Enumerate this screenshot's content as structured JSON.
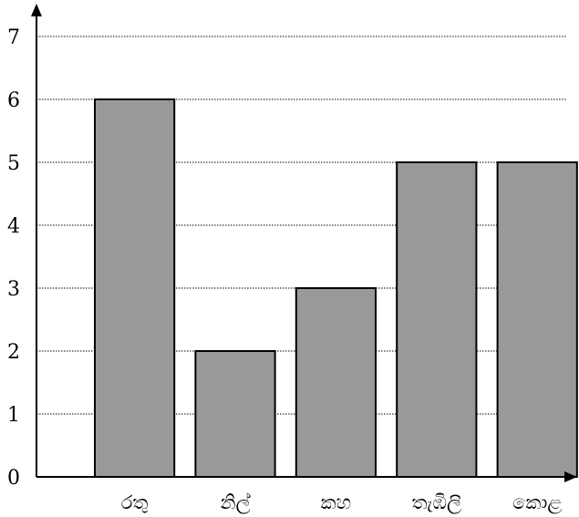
{
  "chart_data": {
    "type": "bar",
    "categories": [
      "රතු",
      "නිල්",
      "කහ",
      "තැඹිලි",
      "කොළ"
    ],
    "values": [
      6,
      2,
      3,
      5,
      5
    ],
    "y_ticks": [
      "0",
      "1",
      "2",
      "3",
      "4",
      "5",
      "6",
      "7"
    ],
    "ylim": [
      0,
      7
    ],
    "grid": "horizontal-dotted",
    "bar_color": "#999999",
    "title": "",
    "xlabel": "",
    "ylabel": ""
  }
}
